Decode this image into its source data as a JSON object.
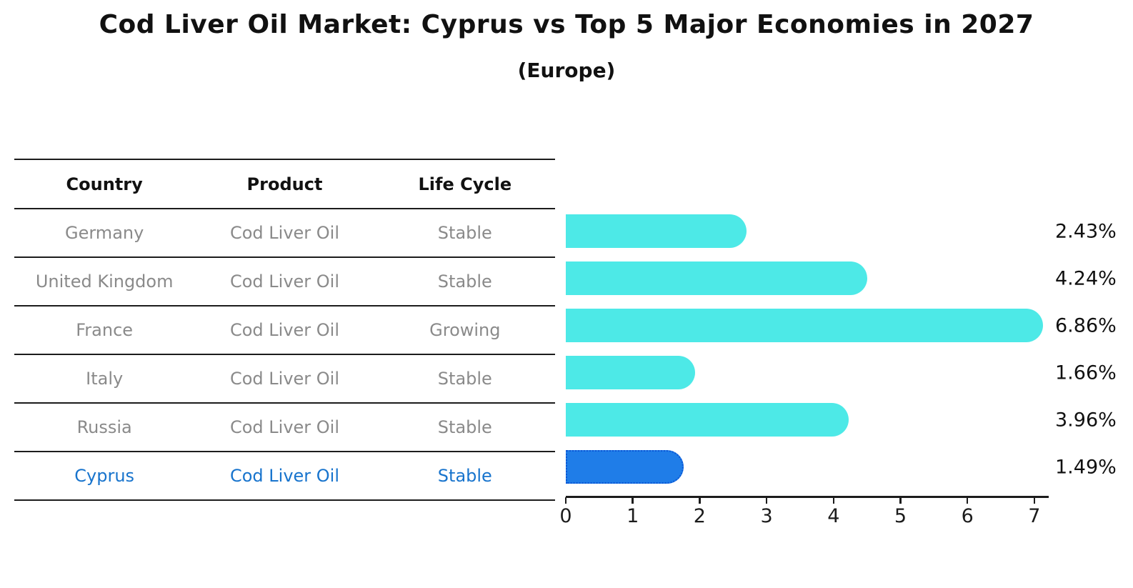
{
  "title": "Cod Liver Oil Market: Cyprus vs Top 5 Major Economies in 2027",
  "subtitle": "(Europe)",
  "table": {
    "headers": {
      "country": "Country",
      "product": "Product",
      "life_cycle": "Life Cycle"
    },
    "rows": [
      {
        "country": "Germany",
        "product": "Cod Liver Oil",
        "life_cycle": "Stable"
      },
      {
        "country": "United Kingdom",
        "product": "Cod Liver Oil",
        "life_cycle": "Stable"
      },
      {
        "country": "France",
        "product": "Cod Liver Oil",
        "life_cycle": "Growing"
      },
      {
        "country": "Italy",
        "product": "Cod Liver Oil",
        "life_cycle": "Stable"
      },
      {
        "country": "Russia",
        "product": "Cod Liver Oil",
        "life_cycle": "Stable"
      },
      {
        "country": "Cyprus",
        "product": "Cod Liver Oil",
        "life_cycle": "Stable"
      }
    ],
    "highlighted_row": "Cyprus"
  },
  "chart_data": {
    "type": "bar",
    "orientation": "horizontal",
    "title": "Cod Liver Oil Market: Cyprus vs Top 5 Major Economies in 2027",
    "subtitle": "(Europe)",
    "categories": [
      "Germany",
      "United Kingdom",
      "France",
      "Italy",
      "Russia",
      "Cyprus"
    ],
    "values": [
      2.43,
      4.24,
      6.86,
      1.66,
      3.96,
      1.49
    ],
    "value_labels": [
      "2.43%",
      "4.24%",
      "6.86%",
      "1.66%",
      "3.96%",
      "1.49%"
    ],
    "xlim": [
      0,
      7
    ],
    "x_ticks": [
      0,
      1,
      2,
      3,
      4,
      5,
      6,
      7
    ],
    "grid": false,
    "legend": false,
    "highlight_index": 5,
    "bar_color": "#4DE9E7",
    "highlight_bar_color": "#1F7DE8",
    "highlight_bar_border_color": "#0A55D5"
  },
  "colors": {
    "background": "#FFFFFF",
    "table_line": "#1C1C1C",
    "header_text": "#111111",
    "row_text": "#8A8A8A",
    "highlight_text": "#1874CD",
    "axis_text": "#1C1C1C"
  }
}
